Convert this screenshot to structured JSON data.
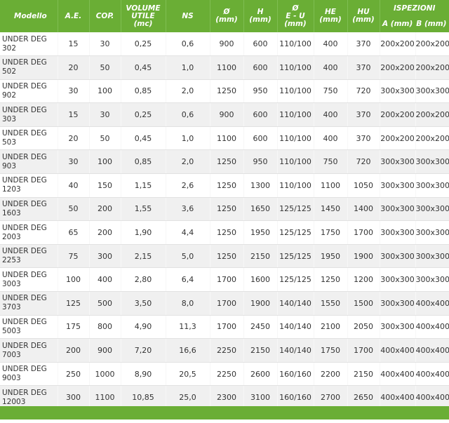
{
  "table": {
    "headers": {
      "modello": "Modello",
      "ae": "A.E.",
      "cop": "COP.",
      "volume": [
        "VOLUME",
        "UTILE",
        "(mc)"
      ],
      "ns": "NS",
      "diam": [
        "Ø",
        "(mm)"
      ],
      "h": [
        "H",
        "(mm)"
      ],
      "eu": [
        "Ø",
        "E - U",
        "(mm)"
      ],
      "he": [
        "HE",
        "(mm)"
      ],
      "hu": [
        "HU",
        "(mm)"
      ],
      "ispezioni": "ISPEZIONI",
      "a": "A (mm)",
      "b": "B (mm)"
    },
    "rows": [
      {
        "m1": "UNDER DEG",
        "m2": "302",
        "ae": "15",
        "cop": "30",
        "vol": "0,25",
        "ns": "0,6",
        "d": "900",
        "h": "600",
        "eu": "110/100",
        "he": "400",
        "hu": "370",
        "a": "200x200",
        "b": "200x200"
      },
      {
        "m1": "UNDER DEG",
        "m2": "502",
        "ae": "20",
        "cop": "50",
        "vol": "0,45",
        "ns": "1,0",
        "d": "1100",
        "h": "600",
        "eu": "110/100",
        "he": "400",
        "hu": "370",
        "a": "200x200",
        "b": "200x200"
      },
      {
        "m1": "UNDER DEG",
        "m2": "902",
        "ae": "30",
        "cop": "100",
        "vol": "0,85",
        "ns": "2,0",
        "d": "1250",
        "h": "950",
        "eu": "110/100",
        "he": "750",
        "hu": "720",
        "a": "300x300",
        "b": "300x300"
      },
      {
        "m1": "UNDER DEG",
        "m2": "303",
        "ae": "15",
        "cop": "30",
        "vol": "0,25",
        "ns": "0,6",
        "d": "900",
        "h": "600",
        "eu": "110/100",
        "he": "400",
        "hu": "370",
        "a": "200x200",
        "b": "200x200"
      },
      {
        "m1": "UNDER DEG",
        "m2": "503",
        "ae": "20",
        "cop": "50",
        "vol": "0,45",
        "ns": "1,0",
        "d": "1100",
        "h": "600",
        "eu": "110/100",
        "he": "400",
        "hu": "370",
        "a": "200x200",
        "b": "200x200"
      },
      {
        "m1": "UNDER DEG",
        "m2": "903",
        "ae": "30",
        "cop": "100",
        "vol": "0,85",
        "ns": "2,0",
        "d": "1250",
        "h": "950",
        "eu": "110/100",
        "he": "750",
        "hu": "720",
        "a": "300x300",
        "b": "300x300"
      },
      {
        "m1": "UNDER DEG",
        "m2": "1203",
        "ae": "40",
        "cop": "150",
        "vol": "1,15",
        "ns": "2,6",
        "d": "1250",
        "h": "1300",
        "eu": "110/100",
        "he": "1100",
        "hu": "1050",
        "a": "300x300",
        "b": "300x300"
      },
      {
        "m1": "UNDER DEG",
        "m2": "1603",
        "ae": "50",
        "cop": "200",
        "vol": "1,55",
        "ns": "3,6",
        "d": "1250",
        "h": "1650",
        "eu": "125/125",
        "he": "1450",
        "hu": "1400",
        "a": "300x300",
        "b": "300x300"
      },
      {
        "m1": "UNDER DEG",
        "m2": "2003",
        "ae": "65",
        "cop": "200",
        "vol": "1,90",
        "ns": "4,4",
        "d": "1250",
        "h": "1950",
        "eu": "125/125",
        "he": "1750",
        "hu": "1700",
        "a": "300x300",
        "b": "300x300"
      },
      {
        "m1": "UNDER DEG",
        "m2": "2253",
        "ae": "75",
        "cop": "300",
        "vol": "2,15",
        "ns": "5,0",
        "d": "1250",
        "h": "2150",
        "eu": "125/125",
        "he": "1950",
        "hu": "1900",
        "a": "300x300",
        "b": "300x300"
      },
      {
        "m1": "UNDER DEG",
        "m2": "3003",
        "ae": "100",
        "cop": "400",
        "vol": "2,80",
        "ns": "6,4",
        "d": "1700",
        "h": "1600",
        "eu": "125/125",
        "he": "1250",
        "hu": "1200",
        "a": "300x300",
        "b": "300x300"
      },
      {
        "m1": "UNDER DEG",
        "m2": "3703",
        "ae": "125",
        "cop": "500",
        "vol": "3,50",
        "ns": "8,0",
        "d": "1700",
        "h": "1900",
        "eu": "140/140",
        "he": "1550",
        "hu": "1500",
        "a": "300x300",
        "b": "400x400"
      },
      {
        "m1": "UNDER DEG",
        "m2": "5003",
        "ae": "175",
        "cop": "800",
        "vol": "4,90",
        "ns": "11,3",
        "d": "1700",
        "h": "2450",
        "eu": "140/140",
        "he": "2100",
        "hu": "2050",
        "a": "300x300",
        "b": "400x400"
      },
      {
        "m1": "UNDER DEG",
        "m2": "7003",
        "ae": "200",
        "cop": "900",
        "vol": "7,20",
        "ns": "16,6",
        "d": "2250",
        "h": "2150",
        "eu": "140/140",
        "he": "1750",
        "hu": "1700",
        "a": "400x400",
        "b": "400x400"
      },
      {
        "m1": "UNDER DEG",
        "m2": "9003",
        "ae": "250",
        "cop": "1000",
        "vol": "8,90",
        "ns": "20,5",
        "d": "2250",
        "h": "2600",
        "eu": "160/160",
        "he": "2200",
        "hu": "2150",
        "a": "400x400",
        "b": "400x400"
      },
      {
        "m1": "UNDER DEG",
        "m2": "12003",
        "ae": "300",
        "cop": "1100",
        "vol": "10,85",
        "ns": "25,0",
        "d": "2300",
        "h": "3100",
        "eu": "160/160",
        "he": "2700",
        "hu": "2650",
        "a": "400x400",
        "b": "400x400"
      }
    ]
  },
  "colors": {
    "header_green": "#6aae35",
    "row_alt": "#f0f0f0",
    "text": "#333333"
  }
}
